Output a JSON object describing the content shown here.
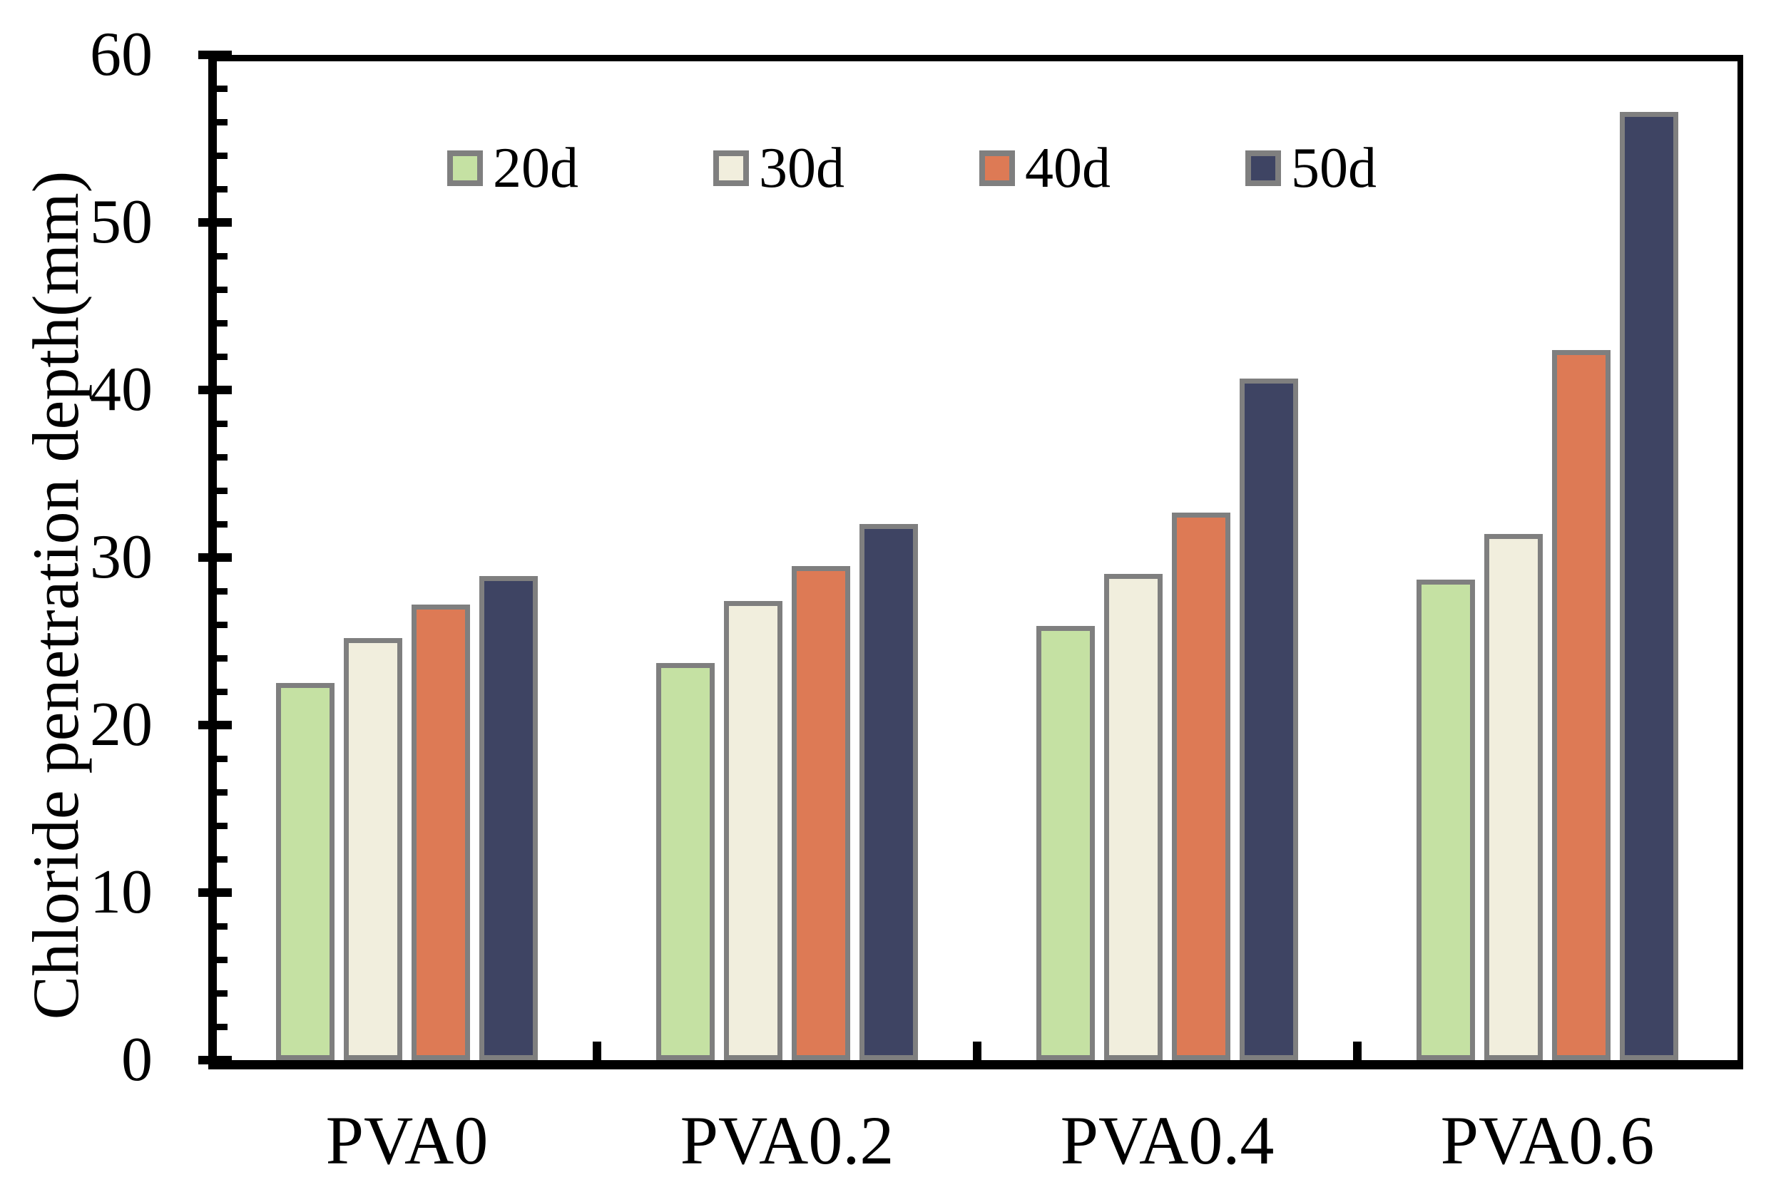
{
  "chart_data": {
    "type": "bar",
    "title": "",
    "categories": [
      "PVA0",
      "PVA0.2",
      "PVA0.4",
      "PVA0.6"
    ],
    "series": [
      {
        "name": "20d",
        "color": "#c5e1a3",
        "values": [
          22.5,
          23.7,
          25.9,
          28.7
        ]
      },
      {
        "name": "30d",
        "color": "#f1eedd",
        "values": [
          25.2,
          27.4,
          29.0,
          31.4
        ]
      },
      {
        "name": "40d",
        "color": "#dd7a55",
        "values": [
          27.2,
          29.5,
          32.7,
          42.4
        ]
      },
      {
        "name": "50d",
        "color": "#3e4463",
        "values": [
          28.9,
          32.0,
          40.7,
          56.6
        ]
      }
    ],
    "xlabel": "",
    "ylabel": "Chloride penetration depth(mm)",
    "ylim": [
      0,
      60
    ],
    "yticks": [
      0,
      10,
      20,
      30,
      40,
      50,
      60
    ],
    "minor_tick_step": 2,
    "bar_border_color": "#7f7f7f",
    "axis_color": "#000000",
    "background_color": "#ffffff",
    "grid": false,
    "legend_position": "top-inside"
  }
}
